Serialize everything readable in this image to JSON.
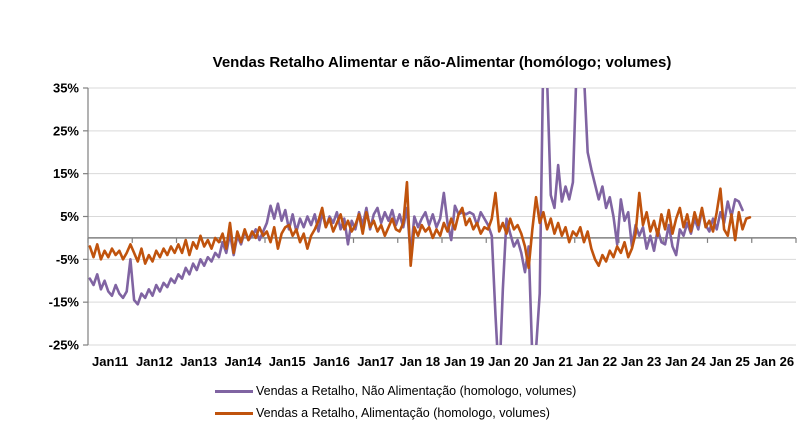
{
  "title": "Vendas Retalho Alimentar e não-Alimentar (homólogo; volumes)",
  "colors": {
    "nonfood": "#8064A2",
    "food": "#C0530D",
    "gridline": "#D9D9D9",
    "axis": "#808080",
    "text": "#000000"
  },
  "legend": [
    {
      "label": "Vendas a Retalho, Não Alimentação (homologo, volumes)",
      "color": "#8064A2"
    },
    {
      "label": "Vendas a Retalho, Alimentação (homologo, volumes)",
      "color": "#C0530D"
    }
  ],
  "chart_data": {
    "type": "line",
    "title": "Vendas Retalho Alimentar e não-Alimentar (homólogo; volumes)",
    "x_unit": "month",
    "x_start": "Jan 2011",
    "x_tick_labels": [
      "Jan11",
      "Jan12",
      "Jan13",
      "Jan14",
      "Jan15",
      "Jan16",
      "Jan17",
      "Jan 18",
      "Jan 19",
      "Jan 20",
      "Jan 21",
      "Jan 22",
      "Jan 23",
      "Jan 24",
      "Jan 25",
      "Jan 26"
    ],
    "x_years_span": 16,
    "y_ticks": [
      35,
      25,
      15,
      5,
      -5,
      -15,
      -25
    ],
    "y_tick_labels": [
      "35%",
      "25%",
      "15%",
      "5%",
      "-5%",
      "-15%",
      "-25%"
    ],
    "ylim": [
      -25,
      35
    ],
    "grid": true,
    "legend_position": "bottom",
    "series": [
      {
        "name": "Vendas a Retalho, Não Alimentação (homologo, volumes)",
        "color": "#8064A2",
        "values": [
          -9.5,
          -11,
          -8.5,
          -12,
          -10,
          -12.5,
          -13.5,
          -11,
          -13,
          -14,
          -12.5,
          -5,
          -14.5,
          -15.5,
          -13,
          -14,
          -12,
          -13.5,
          -11,
          -12.5,
          -10.5,
          -11.5,
          -9.5,
          -10.5,
          -8.5,
          -9.5,
          -7,
          -8.5,
          -6,
          -7.5,
          -5,
          -6.5,
          -4.5,
          -5.5,
          -3.5,
          -4.5,
          -1,
          -3.5,
          1,
          -4,
          0.5,
          -1.5,
          1.5,
          -0.5,
          0.5,
          2,
          -0.5,
          1.5,
          3.5,
          7.5,
          4.5,
          8,
          4,
          6.5,
          2,
          5.5,
          1.5,
          4.5,
          2.5,
          5,
          3,
          5.5,
          1.5,
          6,
          2.5,
          5,
          3.5,
          6,
          2,
          4.5,
          -1.5,
          4,
          2,
          6,
          3,
          7,
          2,
          5.5,
          7,
          3.5,
          6,
          4,
          6.5,
          3,
          5.5,
          2.5,
          7,
          -4,
          5,
          2.5,
          4.5,
          6,
          3,
          5.5,
          2.5,
          4.5,
          10.5,
          3.5,
          -0.5,
          7.5,
          5.5,
          6,
          5.5,
          6,
          5.5,
          3,
          6,
          4.5,
          3,
          0.5,
          -18,
          -34,
          -12,
          4.5,
          1,
          -2,
          -0.5,
          -3.5,
          -8,
          -2,
          -28,
          -26,
          -13,
          44,
          37,
          10,
          7,
          17,
          8.5,
          12,
          9,
          13,
          40,
          43,
          38,
          20,
          16,
          12.5,
          9,
          12,
          7,
          9.5,
          5,
          -1.5,
          9,
          4,
          6,
          -2,
          3,
          0.5,
          2.5,
          -2.5,
          0.5,
          -3,
          2,
          -1,
          -1.5,
          3,
          -2,
          -4,
          2,
          0.5,
          3.5,
          1,
          4.5,
          2,
          6.5,
          3,
          1.5,
          4.5,
          2,
          6,
          3.5,
          8.5,
          5,
          9,
          8.5,
          6.5
        ]
      },
      {
        "name": "Vendas a Retalho, Alimentação (homologo, volumes)",
        "color": "#C0530D",
        "values": [
          -2,
          -4.5,
          -1.5,
          -5,
          -3,
          -4.5,
          -2.5,
          -4,
          -3,
          -5,
          -3.5,
          -1.5,
          -3.5,
          -5.5,
          -2.5,
          -6,
          -4,
          -5.5,
          -3,
          -4.5,
          -2.5,
          -4,
          -2,
          -3.5,
          -1.5,
          -3.5,
          -0.5,
          -4,
          -1,
          -2.5,
          0.5,
          -2,
          -0.5,
          -2.5,
          0,
          -1,
          1,
          -2.5,
          3.5,
          -3.5,
          1.5,
          -1,
          2,
          -0.5,
          1.5,
          0,
          2.5,
          0.5,
          1.5,
          -1,
          2.5,
          -2.5,
          1,
          2.5,
          3,
          0.5,
          2,
          -1,
          1,
          -2.5,
          0.5,
          2,
          4,
          7,
          2.5,
          4.5,
          1.5,
          3.5,
          5.5,
          2,
          4,
          1.5,
          3,
          5.5,
          1,
          6,
          2.5,
          4,
          1.5,
          3,
          0.5,
          2.5,
          4.5,
          2,
          1.5,
          3.5,
          13,
          -6.5,
          2.5,
          0.5,
          3,
          1.5,
          2.5,
          0,
          2,
          0.5,
          3.5,
          1.5,
          4.5,
          2,
          5.5,
          7,
          3,
          4.5,
          2,
          3.5,
          1,
          2.5,
          2,
          4.5,
          10.5,
          1.5,
          3.5,
          1,
          4.5,
          2,
          3,
          1,
          -2,
          -7,
          2,
          9.5,
          3.5,
          6,
          2,
          4.5,
          1,
          3.5,
          0.5,
          2.5,
          -1,
          1.5,
          0.5,
          2.5,
          -1,
          1.5,
          -2.5,
          -5,
          -6.5,
          -4,
          -5.5,
          -3,
          -4.5,
          -2,
          -3.5,
          -1,
          -4.5,
          -2.5,
          1,
          10.5,
          3,
          6,
          1.5,
          4,
          0.5,
          5.5,
          2,
          6.5,
          1,
          4.5,
          7,
          2.5,
          5.5,
          1.5,
          6,
          3,
          7,
          2.5,
          4,
          1.5,
          6,
          11.5,
          2,
          0.5,
          5.5,
          -0.5,
          6,
          2,
          4.5,
          4.8
        ]
      }
    ]
  }
}
